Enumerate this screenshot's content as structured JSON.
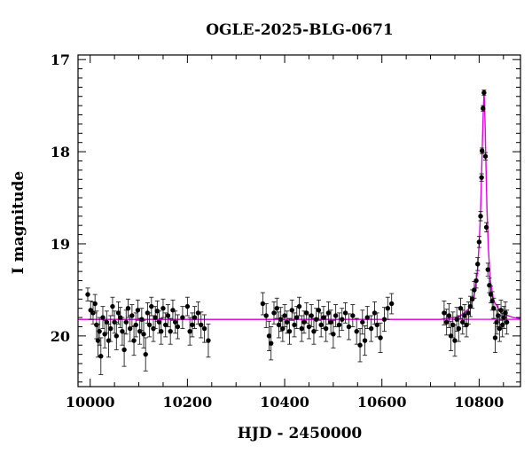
{
  "chart_data": {
    "type": "scatter",
    "title": "OGLE-2025-BLG-0671",
    "xlabel": "HJD - 2450000",
    "ylabel": "I magnitude",
    "xlim": [
      9975,
      10885
    ],
    "ylim": [
      20.55,
      16.95
    ],
    "y_inverted": true,
    "xticks": [
      10000,
      10200,
      10400,
      10600,
      10800
    ],
    "yticks": [
      17,
      18,
      19,
      20
    ],
    "grid": false,
    "series": [
      {
        "marker": "filled-circle-with-errorbars",
        "color": "#000000",
        "points": [
          {
            "x": 9995,
            "y": 19.55,
            "err": 0.07
          },
          {
            "x": 10001,
            "y": 19.72,
            "err": 0.1
          },
          {
            "x": 10006,
            "y": 19.75,
            "err": 0.12
          },
          {
            "x": 10010,
            "y": 19.65,
            "err": 0.1
          },
          {
            "x": 10013,
            "y": 19.88,
            "err": 0.15
          },
          {
            "x": 10016,
            "y": 20.05,
            "err": 0.18
          },
          {
            "x": 10019,
            "y": 19.95,
            "err": 0.15
          },
          {
            "x": 10022,
            "y": 20.22,
            "err": 0.2
          },
          {
            "x": 10026,
            "y": 19.8,
            "err": 0.12
          },
          {
            "x": 10030,
            "y": 19.98,
            "err": 0.15
          },
          {
            "x": 10034,
            "y": 19.85,
            "err": 0.12
          },
          {
            "x": 10038,
            "y": 20.05,
            "err": 0.18
          },
          {
            "x": 10042,
            "y": 19.92,
            "err": 0.14
          },
          {
            "x": 10046,
            "y": 19.68,
            "err": 0.1
          },
          {
            "x": 10050,
            "y": 19.85,
            "err": 0.12
          },
          {
            "x": 10054,
            "y": 20.0,
            "err": 0.15
          },
          {
            "x": 10058,
            "y": 19.75,
            "err": 0.12
          },
          {
            "x": 10062,
            "y": 19.8,
            "err": 0.11
          },
          {
            "x": 10066,
            "y": 19.95,
            "err": 0.15
          },
          {
            "x": 10070,
            "y": 20.15,
            "err": 0.18
          },
          {
            "x": 10074,
            "y": 19.85,
            "err": 0.13
          },
          {
            "x": 10078,
            "y": 19.7,
            "err": 0.1
          },
          {
            "x": 10082,
            "y": 19.92,
            "err": 0.14
          },
          {
            "x": 10086,
            "y": 19.78,
            "err": 0.12
          },
          {
            "x": 10090,
            "y": 20.05,
            "err": 0.16
          },
          {
            "x": 10094,
            "y": 19.88,
            "err": 0.13
          },
          {
            "x": 10098,
            "y": 19.72,
            "err": 0.11
          },
          {
            "x": 10102,
            "y": 19.95,
            "err": 0.14
          },
          {
            "x": 10106,
            "y": 19.82,
            "err": 0.12
          },
          {
            "x": 10110,
            "y": 19.98,
            "err": 0.15
          },
          {
            "x": 10114,
            "y": 20.2,
            "err": 0.18
          },
          {
            "x": 10118,
            "y": 19.75,
            "err": 0.11
          },
          {
            "x": 10122,
            "y": 19.88,
            "err": 0.13
          },
          {
            "x": 10126,
            "y": 19.68,
            "err": 0.1
          },
          {
            "x": 10130,
            "y": 19.92,
            "err": 0.14
          },
          {
            "x": 10134,
            "y": 19.8,
            "err": 0.12
          },
          {
            "x": 10138,
            "y": 19.73,
            "err": 0.11
          },
          {
            "x": 10142,
            "y": 19.85,
            "err": 0.12
          },
          {
            "x": 10146,
            "y": 19.95,
            "err": 0.14
          },
          {
            "x": 10150,
            "y": 19.7,
            "err": 0.1
          },
          {
            "x": 10155,
            "y": 19.88,
            "err": 0.13
          },
          {
            "x": 10160,
            "y": 19.78,
            "err": 0.12
          },
          {
            "x": 10165,
            "y": 19.95,
            "err": 0.14
          },
          {
            "x": 10170,
            "y": 19.72,
            "err": 0.11
          },
          {
            "x": 10175,
            "y": 19.85,
            "err": 0.12
          },
          {
            "x": 10180,
            "y": 19.9,
            "err": 0.13
          },
          {
            "x": 10190,
            "y": 19.8,
            "err": 0.12
          },
          {
            "x": 10200,
            "y": 19.68,
            "err": 0.1
          },
          {
            "x": 10205,
            "y": 19.95,
            "err": 0.15
          },
          {
            "x": 10210,
            "y": 19.88,
            "err": 0.13
          },
          {
            "x": 10215,
            "y": 19.8,
            "err": 0.12
          },
          {
            "x": 10222,
            "y": 19.75,
            "err": 0.12
          },
          {
            "x": 10228,
            "y": 19.88,
            "err": 0.14
          },
          {
            "x": 10235,
            "y": 19.92,
            "err": 0.15
          },
          {
            "x": 10243,
            "y": 20.05,
            "err": 0.18
          },
          {
            "x": 10355,
            "y": 19.65,
            "err": 0.12
          },
          {
            "x": 10362,
            "y": 19.78,
            "err": 0.13
          },
          {
            "x": 10368,
            "y": 20.0,
            "err": 0.16
          },
          {
            "x": 10372,
            "y": 20.08,
            "err": 0.18
          },
          {
            "x": 10378,
            "y": 19.75,
            "err": 0.12
          },
          {
            "x": 10384,
            "y": 19.7,
            "err": 0.11
          },
          {
            "x": 10388,
            "y": 19.88,
            "err": 0.14
          },
          {
            "x": 10392,
            "y": 19.82,
            "err": 0.13
          },
          {
            "x": 10396,
            "y": 19.92,
            "err": 0.14
          },
          {
            "x": 10400,
            "y": 19.78,
            "err": 0.12
          },
          {
            "x": 10405,
            "y": 19.85,
            "err": 0.12
          },
          {
            "x": 10410,
            "y": 19.95,
            "err": 0.14
          },
          {
            "x": 10415,
            "y": 19.72,
            "err": 0.11
          },
          {
            "x": 10420,
            "y": 19.88,
            "err": 0.13
          },
          {
            "x": 10425,
            "y": 19.8,
            "err": 0.12
          },
          {
            "x": 10430,
            "y": 19.68,
            "err": 0.1
          },
          {
            "x": 10435,
            "y": 19.92,
            "err": 0.14
          },
          {
            "x": 10440,
            "y": 19.85,
            "err": 0.12
          },
          {
            "x": 10445,
            "y": 19.75,
            "err": 0.11
          },
          {
            "x": 10450,
            "y": 19.9,
            "err": 0.13
          },
          {
            "x": 10455,
            "y": 19.78,
            "err": 0.12
          },
          {
            "x": 10460,
            "y": 19.95,
            "err": 0.14
          },
          {
            "x": 10465,
            "y": 19.82,
            "err": 0.12
          },
          {
            "x": 10470,
            "y": 19.72,
            "err": 0.11
          },
          {
            "x": 10475,
            "y": 19.88,
            "err": 0.13
          },
          {
            "x": 10480,
            "y": 19.8,
            "err": 0.12
          },
          {
            "x": 10485,
            "y": 19.92,
            "err": 0.14
          },
          {
            "x": 10490,
            "y": 19.75,
            "err": 0.12
          },
          {
            "x": 10495,
            "y": 19.85,
            "err": 0.13
          },
          {
            "x": 10500,
            "y": 19.98,
            "err": 0.15
          },
          {
            "x": 10505,
            "y": 19.78,
            "err": 0.12
          },
          {
            "x": 10512,
            "y": 19.88,
            "err": 0.13
          },
          {
            "x": 10518,
            "y": 19.82,
            "err": 0.12
          },
          {
            "x": 10525,
            "y": 19.75,
            "err": 0.11
          },
          {
            "x": 10532,
            "y": 19.9,
            "err": 0.14
          },
          {
            "x": 10540,
            "y": 19.78,
            "err": 0.12
          },
          {
            "x": 10548,
            "y": 19.95,
            "err": 0.14
          },
          {
            "x": 10555,
            "y": 20.1,
            "err": 0.18
          },
          {
            "x": 10560,
            "y": 19.85,
            "err": 0.13
          },
          {
            "x": 10565,
            "y": 20.05,
            "err": 0.16
          },
          {
            "x": 10570,
            "y": 19.8,
            "err": 0.12
          },
          {
            "x": 10578,
            "y": 19.92,
            "err": 0.14
          },
          {
            "x": 10585,
            "y": 19.75,
            "err": 0.12
          },
          {
            "x": 10590,
            "y": 19.88,
            "err": 0.13
          },
          {
            "x": 10597,
            "y": 20.02,
            "err": 0.16
          },
          {
            "x": 10605,
            "y": 19.82,
            "err": 0.13
          },
          {
            "x": 10612,
            "y": 19.7,
            "err": 0.12
          },
          {
            "x": 10620,
            "y": 19.65,
            "err": 0.11
          },
          {
            "x": 10728,
            "y": 19.75,
            "err": 0.13
          },
          {
            "x": 10733,
            "y": 19.85,
            "err": 0.14
          },
          {
            "x": 10738,
            "y": 19.78,
            "err": 0.13
          },
          {
            "x": 10742,
            "y": 20.0,
            "err": 0.16
          },
          {
            "x": 10746,
            "y": 19.88,
            "err": 0.14
          },
          {
            "x": 10750,
            "y": 20.05,
            "err": 0.17
          },
          {
            "x": 10754,
            "y": 19.82,
            "err": 0.13
          },
          {
            "x": 10758,
            "y": 19.92,
            "err": 0.14
          },
          {
            "x": 10762,
            "y": 19.7,
            "err": 0.11
          },
          {
            "x": 10766,
            "y": 19.85,
            "err": 0.13
          },
          {
            "x": 10770,
            "y": 19.78,
            "err": 0.12
          },
          {
            "x": 10774,
            "y": 19.88,
            "err": 0.13
          },
          {
            "x": 10778,
            "y": 19.75,
            "err": 0.12
          },
          {
            "x": 10782,
            "y": 19.68,
            "err": 0.11
          },
          {
            "x": 10786,
            "y": 19.6,
            "err": 0.1
          },
          {
            "x": 10790,
            "y": 19.5,
            "err": 0.09
          },
          {
            "x": 10794,
            "y": 19.4,
            "err": 0.08
          },
          {
            "x": 10797,
            "y": 19.22,
            "err": 0.07
          },
          {
            "x": 10800,
            "y": 18.98,
            "err": 0.06
          },
          {
            "x": 10803,
            "y": 18.7,
            "err": 0.05
          },
          {
            "x": 10805,
            "y": 18.28,
            "err": 0.04
          },
          {
            "x": 10806,
            "y": 17.99,
            "err": 0.03
          },
          {
            "x": 10808,
            "y": 17.53,
            "err": 0.03
          },
          {
            "x": 10810,
            "y": 17.36,
            "err": 0.03
          },
          {
            "x": 10813,
            "y": 18.05,
            "err": 0.04
          },
          {
            "x": 10815,
            "y": 18.82,
            "err": 0.05
          },
          {
            "x": 10818,
            "y": 19.28,
            "err": 0.07
          },
          {
            "x": 10821,
            "y": 19.45,
            "err": 0.08
          },
          {
            "x": 10824,
            "y": 19.55,
            "err": 0.09
          },
          {
            "x": 10827,
            "y": 19.62,
            "err": 0.1
          },
          {
            "x": 10830,
            "y": 19.7,
            "err": 0.11
          },
          {
            "x": 10833,
            "y": 20.02,
            "err": 0.16
          },
          {
            "x": 10836,
            "y": 19.85,
            "err": 0.13
          },
          {
            "x": 10839,
            "y": 19.78,
            "err": 0.12
          },
          {
            "x": 10842,
            "y": 19.92,
            "err": 0.14
          },
          {
            "x": 10845,
            "y": 19.72,
            "err": 0.11
          },
          {
            "x": 10848,
            "y": 19.88,
            "err": 0.13
          },
          {
            "x": 10851,
            "y": 19.8,
            "err": 0.12
          },
          {
            "x": 10854,
            "y": 19.75,
            "err": 0.12
          },
          {
            "x": 10857,
            "y": 19.85,
            "err": 0.13
          }
        ]
      },
      {
        "marker": "line",
        "color": "#e000e0",
        "baseline": 19.82,
        "model": [
          {
            "x": 9975,
            "y": 19.82
          },
          {
            "x": 10720,
            "y": 19.82
          },
          {
            "x": 10760,
            "y": 19.79
          },
          {
            "x": 10780,
            "y": 19.7
          },
          {
            "x": 10790,
            "y": 19.55
          },
          {
            "x": 10796,
            "y": 19.33
          },
          {
            "x": 10800,
            "y": 19.0
          },
          {
            "x": 10803,
            "y": 18.65
          },
          {
            "x": 10805,
            "y": 18.25
          },
          {
            "x": 10807,
            "y": 17.85
          },
          {
            "x": 10808.5,
            "y": 17.55
          },
          {
            "x": 10810,
            "y": 17.37
          },
          {
            "x": 10811,
            "y": 17.45
          },
          {
            "x": 10812.5,
            "y": 17.75
          },
          {
            "x": 10814,
            "y": 18.15
          },
          {
            "x": 10816,
            "y": 18.62
          },
          {
            "x": 10819,
            "y": 19.05
          },
          {
            "x": 10823,
            "y": 19.4
          },
          {
            "x": 10830,
            "y": 19.62
          },
          {
            "x": 10845,
            "y": 19.75
          },
          {
            "x": 10870,
            "y": 19.8
          },
          {
            "x": 10885,
            "y": 19.81
          }
        ]
      }
    ]
  }
}
